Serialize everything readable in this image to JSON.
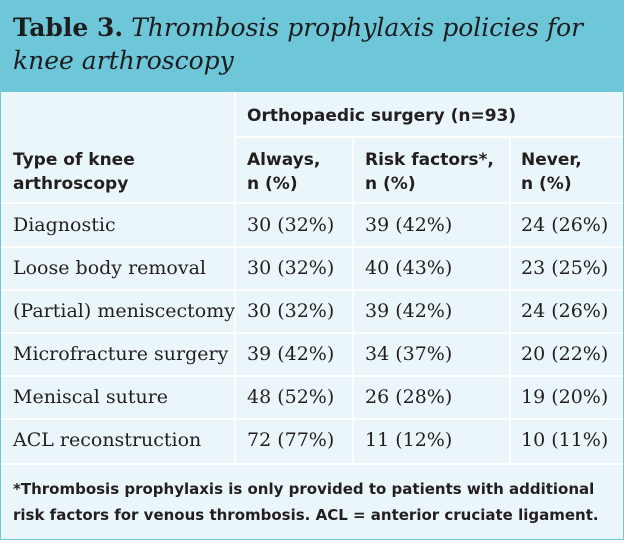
{
  "title": {
    "label": "Table 3.",
    "caption": "Thrombosis prophylaxis policies for knee arthroscopy"
  },
  "group_header": "Orthopaedic surgery (n=93)",
  "columns": {
    "type": [
      "Type of knee",
      "arthroscopy"
    ],
    "always": [
      "Always,",
      "n (%)"
    ],
    "risk": [
      "Risk factors*,",
      "n (%)"
    ],
    "never": [
      "Never,",
      "n (%)"
    ]
  },
  "rows": [
    {
      "type": "Diagnostic",
      "always": "30 (32%)",
      "risk": "39 (42%)",
      "never": "24 (26%)"
    },
    {
      "type": "Loose body removal",
      "always": "30 (32%)",
      "risk": "40 (43%)",
      "never": "23 (25%)"
    },
    {
      "type": "(Partial) meniscectomy",
      "always": "30 (32%)",
      "risk": "39 (42%)",
      "never": "24 (26%)"
    },
    {
      "type": "Microfracture surgery",
      "always": "39 (42%)",
      "risk": "34 (37%)",
      "never": "20 (22%)"
    },
    {
      "type": "Meniscal suture",
      "always": "48 (52%)",
      "risk": "26 (28%)",
      "never": "19 (20%)"
    },
    {
      "type": "ACL reconstruction",
      "always": "72 (77%)",
      "risk": "11 (12%)",
      "never": "10 (11%)"
    }
  ],
  "footnote": "*Thrombosis prophylaxis is only provided to patients with additional risk factors for venous thrombosis. ACL = anterior cruciate ligament.",
  "colors": {
    "header_bg": "#6ec6d9",
    "body_bg": "#eaf6f9",
    "rule": "#ffffff"
  }
}
